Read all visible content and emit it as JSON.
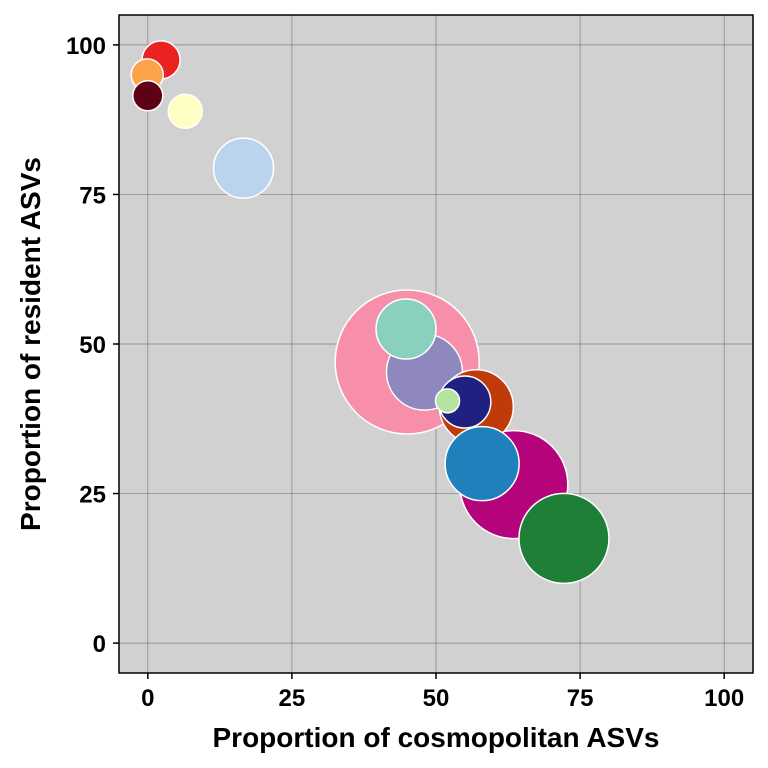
{
  "chart_data": {
    "type": "scatter",
    "title": "",
    "xlabel": "Proportion of cosmopolitan ASVs",
    "ylabel": "Proportion of resident ASVs",
    "xlim": [
      -5,
      105
    ],
    "ylim": [
      -5,
      105
    ],
    "xticks": [
      0,
      25,
      50,
      75,
      100
    ],
    "yticks": [
      0,
      25,
      50,
      75,
      100
    ],
    "grid": true,
    "panel_color": "#d1d1d1",
    "grid_color": "#808080",
    "point_outline": "#ffffff",
    "points": [
      {
        "x": 45.0,
        "y": 47.0,
        "size": 72,
        "color": "#f78fab"
      },
      {
        "x": 63.5,
        "y": 26.5,
        "size": 54,
        "color": "#b5047b"
      },
      {
        "x": 72.2,
        "y": 17.5,
        "size": 45,
        "color": "#207f37"
      },
      {
        "x": 57.0,
        "y": 39.5,
        "size": 37,
        "color": "#c03a0a"
      },
      {
        "x": 52.0,
        "y": 40.5,
        "size": 12,
        "color": "#b5e3a0"
      },
      {
        "x": 58.0,
        "y": 30.0,
        "size": 37,
        "color": "#1f80bb"
      },
      {
        "x": 48.0,
        "y": 45.3,
        "size": 38,
        "color": "#8e88bf"
      },
      {
        "x": 44.8,
        "y": 52.5,
        "size": 30,
        "color": "#8ad1bd"
      },
      {
        "x": 55.0,
        "y": 40.3,
        "size": 26,
        "color": "#1f2080"
      },
      {
        "x": 16.6,
        "y": 79.4,
        "size": 30,
        "color": "#bcd3ee"
      },
      {
        "x": 2.3,
        "y": 97.5,
        "size": 19,
        "color": "#ea2321"
      },
      {
        "x": -0.1,
        "y": 95.0,
        "size": 16,
        "color": "#fba24a"
      },
      {
        "x": 6.5,
        "y": 88.9,
        "size": 17,
        "color": "#ffffc4"
      },
      {
        "x": 0.0,
        "y": 91.5,
        "size": 15,
        "color": "#5e0016"
      }
    ]
  }
}
